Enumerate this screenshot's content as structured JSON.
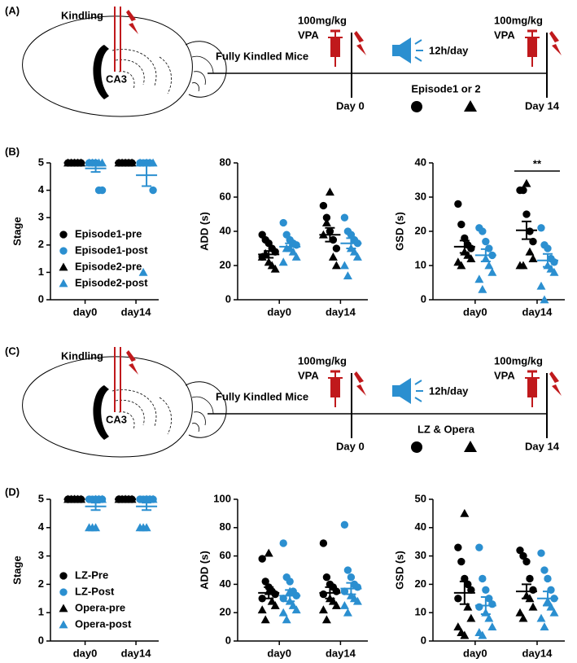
{
  "panels": [
    {
      "label": "(A)",
      "kindling": "Kindling",
      "region": "CA3",
      "dose": "100mg/kg",
      "drug": "VPA",
      "mice": "Fully Kindled Mice",
      "schedule": "12h/day",
      "condition": "Episode1 or 2",
      "day_start": "Day 0",
      "day_end": "Day 14"
    },
    {
      "label": "(C)",
      "kindling": "Kindling",
      "region": "CA3",
      "dose": "100mg/kg",
      "drug": "VPA",
      "mice": "Fully Kindled Mice",
      "schedule": "12h/day",
      "condition": "LZ & Opera",
      "day_start": "Day 0",
      "day_end": "Day 14"
    }
  ],
  "chart_labels": [
    "(B)",
    "(D)"
  ],
  "chart_data": [
    {
      "type": "dotplot",
      "ylabel": "Stage",
      "categories": [
        "day0",
        "day14"
      ],
      "ylim": [
        0,
        5
      ],
      "yticks": [
        0,
        1,
        2,
        3,
        4,
        5
      ],
      "legend": "lower left",
      "series": [
        {
          "name": "Episode1-pre",
          "color": "#000000",
          "marker": "circle",
          "values": [
            [
              5,
              5,
              5,
              5,
              5
            ],
            [
              5,
              5,
              5,
              5,
              5
            ]
          ]
        },
        {
          "name": "Episode1-post",
          "color": "#2b8fd0",
          "marker": "circle",
          "values": [
            [
              5,
              5,
              5,
              4,
              4
            ],
            [
              5,
              5,
              5,
              5,
              4
            ]
          ]
        },
        {
          "name": "Episode2-pre",
          "color": "#000000",
          "marker": "triangle",
          "values": [
            [
              5,
              5,
              5,
              5,
              5
            ],
            [
              5,
              5,
              5,
              5,
              5
            ]
          ]
        },
        {
          "name": "Episode2-post",
          "color": "#2b8fd0",
          "marker": "triangle",
          "values": [
            [
              5,
              5,
              5,
              5,
              5
            ],
            [
              5,
              5,
              5,
              5,
              1
            ]
          ]
        }
      ],
      "summary": [
        {
          "color": "#000000",
          "mean": [
            5,
            5
          ],
          "sem": [
            0,
            0
          ]
        },
        {
          "color": "#2b8fd0",
          "mean": [
            4.8,
            4.55
          ],
          "sem": [
            0.13,
            0.4
          ]
        }
      ]
    },
    {
      "type": "dotplot",
      "ylabel": "ADD (s)",
      "categories": [
        "day0",
        "day14"
      ],
      "ylim": [
        0,
        80
      ],
      "yticks": [
        0,
        20,
        40,
        60,
        80
      ],
      "series": [
        {
          "color": "#000000",
          "marker": "circle",
          "values": [
            [
              38,
              35,
              33,
              30,
              28,
              25
            ],
            [
              55,
              48,
              40,
              35,
              30
            ]
          ]
        },
        {
          "color": "#2b8fd0",
          "marker": "circle",
          "values": [
            [
              45,
              38,
              35,
              33,
              32
            ],
            [
              48,
              40,
              38,
              35,
              33
            ]
          ]
        },
        {
          "color": "#000000",
          "marker": "triangle",
          "values": [
            [
              22,
              20,
              18,
              25,
              27
            ],
            [
              63,
              25,
              20,
              38,
              45
            ]
          ]
        },
        {
          "color": "#2b8fd0",
          "marker": "triangle",
          "values": [
            [
              30,
              28,
              25,
              22,
              30
            ],
            [
              30,
              28,
              25,
              20,
              14
            ]
          ]
        }
      ],
      "summary": [
        {
          "color": "#000000",
          "mean": [
            26.5,
            38
          ],
          "sem": [
            2,
            4
          ]
        },
        {
          "color": "#2b8fd0",
          "mean": [
            31,
            33
          ],
          "sem": [
            2,
            3
          ]
        }
      ]
    },
    {
      "type": "dotplot",
      "ylabel": "GSD (s)",
      "categories": [
        "day0",
        "day14"
      ],
      "ylim": [
        0,
        40
      ],
      "yticks": [
        0,
        10,
        20,
        30,
        40
      ],
      "annotation": "**",
      "series": [
        {
          "color": "#000000",
          "marker": "circle",
          "values": [
            [
              28,
              22,
              18,
              16,
              15
            ],
            [
              32,
              32,
              25,
              20,
              17
            ]
          ]
        },
        {
          "color": "#2b8fd0",
          "marker": "circle",
          "values": [
            [
              21,
              20,
              17,
              15,
              13
            ],
            [
              21,
              16,
              15,
              12,
              11
            ]
          ]
        },
        {
          "color": "#000000",
          "marker": "triangle",
          "values": [
            [
              14,
              13,
              12,
              11,
              10
            ],
            [
              34,
              14,
              12,
              10,
              10
            ]
          ]
        },
        {
          "color": "#2b8fd0",
          "marker": "triangle",
          "values": [
            [
              12,
              10,
              8,
              6,
              3
            ],
            [
              10,
              9,
              8,
              4,
              0
            ]
          ]
        }
      ],
      "summary": [
        {
          "color": "#000000",
          "mean": [
            15.5,
            20.3
          ],
          "sem": [
            1.8,
            2.6
          ]
        },
        {
          "color": "#2b8fd0",
          "mean": [
            13,
            11.5
          ],
          "sem": [
            1.8,
            1.9
          ]
        }
      ]
    },
    {
      "type": "dotplot",
      "ylabel": "Stage",
      "categories": [
        "day0",
        "day14"
      ],
      "ylim": [
        0,
        5
      ],
      "yticks": [
        0,
        1,
        2,
        3,
        4,
        5
      ],
      "legend": "lower left",
      "series": [
        {
          "name": "LZ-Pre",
          "color": "#000000",
          "marker": "circle",
          "values": [
            [
              5,
              5,
              5,
              5,
              5,
              5
            ],
            [
              5,
              5,
              5,
              5,
              5,
              5
            ]
          ]
        },
        {
          "name": "LZ-Post",
          "color": "#2b8fd0",
          "marker": "circle",
          "values": [
            [
              5,
              5,
              5,
              5,
              5,
              5
            ],
            [
              5,
              5,
              5,
              5,
              5,
              5
            ]
          ]
        },
        {
          "name": "Opera-pre",
          "color": "#000000",
          "marker": "triangle",
          "values": [
            [
              5,
              5,
              5,
              5,
              5,
              5
            ],
            [
              5,
              5,
              5,
              5,
              5,
              5
            ]
          ]
        },
        {
          "name": "Opera-post",
          "color": "#2b8fd0",
          "marker": "triangle",
          "values": [
            [
              5,
              5,
              5,
              4,
              4,
              4
            ],
            [
              5,
              5,
              5,
              4,
              4,
              4
            ]
          ]
        }
      ],
      "summary": [
        {
          "color": "#000000",
          "mean": [
            5,
            5
          ],
          "sem": [
            0,
            0
          ]
        },
        {
          "color": "#2b8fd0",
          "mean": [
            4.75,
            4.75
          ],
          "sem": [
            0.13,
            0.13
          ]
        }
      ]
    },
    {
      "type": "dotplot",
      "ylabel": "ADD (s)",
      "categories": [
        "day0",
        "day14"
      ],
      "ylim": [
        0,
        100
      ],
      "yticks": [
        0,
        20,
        40,
        60,
        80,
        100
      ],
      "series": [
        {
          "color": "#000000",
          "marker": "circle",
          "values": [
            [
              58,
              42,
              38,
              35,
              33,
              30
            ],
            [
              69,
              45,
              40,
              38,
              35,
              33
            ]
          ]
        },
        {
          "color": "#2b8fd0",
          "marker": "circle",
          "values": [
            [
              69,
              45,
              42,
              35,
              32,
              30
            ],
            [
              82,
              50,
              45,
              40,
              38,
              35
            ]
          ]
        },
        {
          "color": "#000000",
          "marker": "triangle",
          "values": [
            [
              62,
              28,
              25,
              22,
              15,
              35
            ],
            [
              30,
              28,
              25,
              22,
              15
            ]
          ]
        },
        {
          "color": "#2b8fd0",
          "marker": "triangle",
          "values": [
            [
              28,
              25,
              22,
              20,
              15,
              35
            ],
            [
              32,
              30,
              28,
              25,
              20
            ]
          ]
        }
      ],
      "summary": [
        {
          "color": "#000000",
          "mean": [
            34,
            34
          ],
          "sem": [
            4,
            4
          ]
        },
        {
          "color": "#2b8fd0",
          "mean": [
            32,
            37
          ],
          "sem": [
            4,
            4
          ]
        }
      ]
    },
    {
      "type": "dotplot",
      "ylabel": "GSD (s)",
      "categories": [
        "day0",
        "day14"
      ],
      "ylim": [
        0,
        50
      ],
      "yticks": [
        0,
        10,
        20,
        30,
        40,
        50
      ],
      "series": [
        {
          "color": "#000000",
          "marker": "circle",
          "values": [
            [
              33,
              28,
              22,
              20,
              18,
              15
            ],
            [
              32,
              30,
              28,
              22,
              18
            ]
          ]
        },
        {
          "color": "#2b8fd0",
          "marker": "circle",
          "values": [
            [
              33,
              22,
              18,
              15,
              13,
              12
            ],
            [
              31,
              25,
              22,
              18,
              15
            ]
          ]
        },
        {
          "color": "#000000",
          "marker": "triangle",
          "values": [
            [
              45,
              12,
              8,
              5,
              3,
              2
            ],
            [
              16,
              15,
              12,
              10,
              8
            ]
          ]
        },
        {
          "color": "#2b8fd0",
          "marker": "triangle",
          "values": [
            [
              10,
              8,
              5,
              3,
              2
            ],
            [
              14,
              12,
              10,
              8,
              5
            ]
          ]
        }
      ],
      "summary": [
        {
          "color": "#000000",
          "mean": [
            17,
            17.5
          ],
          "sem": [
            4,
            2.5
          ]
        },
        {
          "color": "#2b8fd0",
          "mean": [
            12.5,
            15
          ],
          "sem": [
            3,
            2.5
          ]
        }
      ]
    }
  ]
}
